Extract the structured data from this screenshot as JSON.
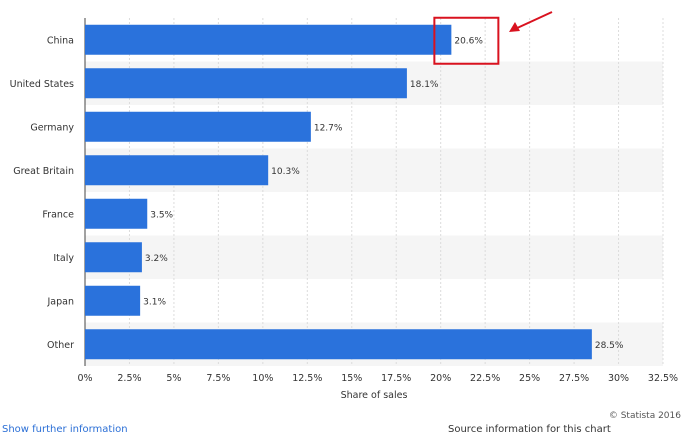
{
  "chart_data": {
    "type": "bar",
    "orientation": "horizontal",
    "categories": [
      "China",
      "United States",
      "Germany",
      "Great Britain",
      "France",
      "Italy",
      "Japan",
      "Other"
    ],
    "values": [
      20.6,
      18.1,
      12.7,
      10.3,
      3.5,
      3.2,
      3.1,
      28.5
    ],
    "value_labels": [
      "20.6%",
      "18.1%",
      "12.7%",
      "10.3%",
      "3.5%",
      "3.2%",
      "3.1%",
      "28.5%"
    ],
    "xlabel": "Share of sales",
    "xlim": [
      0,
      32.5
    ],
    "x_ticks": [
      0,
      2.5,
      5,
      7.5,
      10,
      12.5,
      15,
      17.5,
      20,
      22.5,
      25,
      27.5,
      30,
      32.5
    ],
    "x_tick_labels": [
      "0%",
      "2.5%",
      "5%",
      "7.5%",
      "10%",
      "12.5%",
      "15%",
      "17.5%",
      "20%",
      "22.5%",
      "25%",
      "27.5%",
      "30%",
      "32.5%"
    ],
    "grid": true,
    "bar_color": "#2a72dc",
    "highlight": {
      "category": "China",
      "color": "#d9121f"
    }
  },
  "credit": "© Statista 2016",
  "footer": {
    "left": "Show further information",
    "right": "Source information for this chart"
  }
}
